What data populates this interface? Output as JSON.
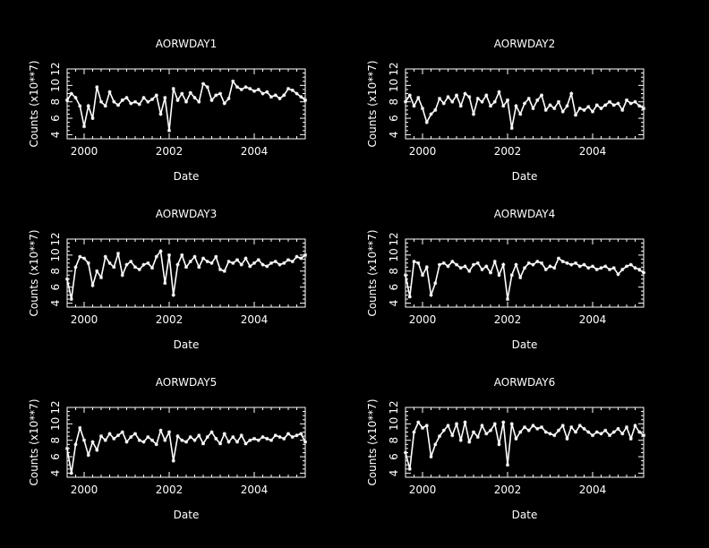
{
  "style": {
    "background": "#000000",
    "foreground": "#ffffff"
  },
  "chart_data": [
    {
      "type": "line",
      "title": "AORWDAY1",
      "xlabel": "Date",
      "ylabel": "Counts (x10**7)",
      "xlim": [
        1999.6,
        2005.2
      ],
      "ylim": [
        3.5,
        12
      ],
      "xticks": [
        "2000",
        "2002",
        "2004"
      ],
      "yticks": [
        "4",
        "6",
        "8",
        "10",
        "12"
      ],
      "series": [
        {
          "x": [
            1999.6,
            1999.7,
            1999.8,
            1999.9,
            2000.0,
            2000.1,
            2000.2,
            2000.3,
            2000.4,
            2000.5,
            2000.6,
            2000.7,
            2000.8,
            2000.9,
            2001.0,
            2001.1,
            2001.2,
            2001.3,
            2001.4,
            2001.5,
            2001.6,
            2001.7,
            2001.8,
            2001.9,
            2002.0,
            2002.1,
            2002.2,
            2002.3,
            2002.4,
            2002.5,
            2002.6,
            2002.7,
            2002.8,
            2002.9,
            2003.0,
            2003.1,
            2003.2,
            2003.3,
            2003.4,
            2003.5,
            2003.6,
            2003.7,
            2003.8,
            2003.9,
            2004.0,
            2004.1,
            2004.2,
            2004.3,
            2004.4,
            2004.5,
            2004.6,
            2004.7,
            2004.8,
            2004.9,
            2005.0,
            2005.1,
            2005.2
          ],
          "y": [
            8.2,
            9.0,
            8.5,
            7.5,
            5.0,
            7.5,
            6.0,
            9.8,
            8.0,
            7.5,
            9.2,
            8.0,
            7.6,
            8.2,
            8.5,
            7.8,
            8.0,
            7.7,
            8.5,
            8.0,
            8.3,
            8.8,
            6.5,
            8.5,
            4.5,
            9.6,
            8.2,
            9.0,
            8.0,
            9.1,
            8.5,
            8.0,
            10.2,
            9.8,
            8.2,
            8.8,
            9.0,
            7.8,
            8.4,
            10.5,
            9.8,
            9.5,
            9.8,
            9.6,
            9.3,
            9.5,
            9.0,
            9.2,
            8.6,
            8.8,
            8.4,
            8.8,
            9.6,
            9.4,
            9.0,
            8.6,
            8.2
          ]
        }
      ]
    },
    {
      "type": "line",
      "title": "AORWDAY2",
      "xlabel": "Date",
      "ylabel": "Counts (x10**7)",
      "xlim": [
        1999.6,
        2005.2
      ],
      "ylim": [
        3.5,
        12
      ],
      "xticks": [
        "2000",
        "2002",
        "2004"
      ],
      "yticks": [
        "4",
        "6",
        "8",
        "10",
        "12"
      ],
      "series": [
        {
          "x": [
            1999.6,
            1999.7,
            1999.8,
            1999.9,
            2000.0,
            2000.1,
            2000.2,
            2000.3,
            2000.4,
            2000.5,
            2000.6,
            2000.7,
            2000.8,
            2000.9,
            2001.0,
            2001.1,
            2001.2,
            2001.3,
            2001.4,
            2001.5,
            2001.6,
            2001.7,
            2001.8,
            2001.9,
            2002.0,
            2002.1,
            2002.2,
            2002.3,
            2002.4,
            2002.5,
            2002.6,
            2002.7,
            2002.8,
            2002.9,
            2003.0,
            2003.1,
            2003.2,
            2003.3,
            2003.4,
            2003.5,
            2003.6,
            2003.7,
            2003.8,
            2003.9,
            2004.0,
            2004.1,
            2004.2,
            2004.3,
            2004.4,
            2004.5,
            2004.6,
            2004.7,
            2004.8,
            2004.9,
            2005.0,
            2005.1,
            2005.2
          ],
          "y": [
            8.0,
            8.8,
            7.5,
            8.5,
            7.2,
            5.5,
            6.5,
            7.0,
            8.4,
            7.8,
            8.6,
            8.0,
            8.8,
            7.5,
            9.0,
            8.6,
            6.5,
            8.4,
            8.0,
            8.8,
            7.5,
            8.0,
            9.2,
            7.5,
            8.2,
            4.8,
            7.5,
            6.5,
            7.8,
            8.4,
            7.2,
            8.2,
            8.8,
            7.0,
            7.6,
            7.2,
            8.0,
            6.8,
            7.5,
            9.0,
            6.4,
            7.2,
            7.0,
            7.4,
            6.8,
            7.6,
            7.2,
            7.6,
            8.0,
            7.6,
            7.8,
            7.0,
            8.2,
            7.8,
            8.0,
            7.5,
            7.2
          ]
        }
      ]
    },
    {
      "type": "line",
      "title": "AORWDAY3",
      "xlabel": "Date",
      "ylabel": "Counts (x10**7)",
      "xlim": [
        1999.6,
        2005.2
      ],
      "ylim": [
        3.5,
        12
      ],
      "xticks": [
        "2000",
        "2002",
        "2004"
      ],
      "yticks": [
        "4",
        "6",
        "8",
        "10",
        "12"
      ],
      "series": [
        {
          "x": [
            1999.6,
            1999.7,
            1999.8,
            1999.9,
            2000.0,
            2000.1,
            2000.2,
            2000.3,
            2000.4,
            2000.5,
            2000.6,
            2000.7,
            2000.8,
            2000.9,
            2001.0,
            2001.1,
            2001.2,
            2001.3,
            2001.4,
            2001.5,
            2001.6,
            2001.7,
            2001.8,
            2001.9,
            2002.0,
            2002.1,
            2002.2,
            2002.3,
            2002.4,
            2002.5,
            2002.6,
            2002.7,
            2002.8,
            2002.9,
            2003.0,
            2003.1,
            2003.2,
            2003.3,
            2003.4,
            2003.5,
            2003.6,
            2003.7,
            2003.8,
            2003.9,
            2004.0,
            2004.1,
            2004.2,
            2004.3,
            2004.4,
            2004.5,
            2004.6,
            2004.7,
            2004.8,
            2004.9,
            2005.0,
            2005.1,
            2005.2
          ],
          "y": [
            7.0,
            4.5,
            8.5,
            9.8,
            9.6,
            9.0,
            6.2,
            8.0,
            7.2,
            9.8,
            9.0,
            8.5,
            10.2,
            7.5,
            8.8,
            9.2,
            8.5,
            8.2,
            8.8,
            9.0,
            8.4,
            9.8,
            10.5,
            6.5,
            10.0,
            5.0,
            8.8,
            10.0,
            8.5,
            9.2,
            9.8,
            8.5,
            9.6,
            9.2,
            9.0,
            9.8,
            8.2,
            8.0,
            9.2,
            9.0,
            9.4,
            8.8,
            9.6,
            8.6,
            9.0,
            9.4,
            8.8,
            8.6,
            9.0,
            9.2,
            8.8,
            9.0,
            9.4,
            9.2,
            9.8,
            9.6,
            10.0
          ]
        }
      ]
    },
    {
      "type": "line",
      "title": "AORWDAY4",
      "xlabel": "Date",
      "ylabel": "Counts (x10**7)",
      "xlim": [
        1999.6,
        2005.2
      ],
      "ylim": [
        3.5,
        12
      ],
      "xticks": [
        "2000",
        "2002",
        "2004"
      ],
      "yticks": [
        "4",
        "6",
        "8",
        "10",
        "12"
      ],
      "series": [
        {
          "x": [
            1999.6,
            1999.7,
            1999.8,
            1999.9,
            2000.0,
            2000.1,
            2000.2,
            2000.3,
            2000.4,
            2000.5,
            2000.6,
            2000.7,
            2000.8,
            2000.9,
            2001.0,
            2001.1,
            2001.2,
            2001.3,
            2001.4,
            2001.5,
            2001.6,
            2001.7,
            2001.8,
            2001.9,
            2002.0,
            2002.1,
            2002.2,
            2002.3,
            2002.4,
            2002.5,
            2002.6,
            2002.7,
            2002.8,
            2002.9,
            2003.0,
            2003.1,
            2003.2,
            2003.3,
            2003.4,
            2003.5,
            2003.6,
            2003.7,
            2003.8,
            2003.9,
            2004.0,
            2004.1,
            2004.2,
            2004.3,
            2004.4,
            2004.5,
            2004.6,
            2004.7,
            2004.8,
            2004.9,
            2005.0,
            2005.1,
            2005.2
          ],
          "y": [
            7.5,
            4.8,
            9.2,
            9.0,
            7.5,
            8.5,
            5.0,
            6.5,
            8.8,
            9.0,
            8.6,
            9.2,
            8.8,
            8.4,
            8.6,
            8.0,
            8.8,
            9.0,
            8.2,
            8.6,
            7.8,
            9.2,
            7.5,
            8.8,
            4.5,
            7.5,
            8.8,
            7.2,
            8.4,
            9.0,
            8.8,
            9.2,
            9.0,
            8.2,
            8.6,
            8.4,
            9.6,
            9.2,
            9.0,
            8.8,
            9.0,
            8.6,
            8.8,
            8.4,
            8.6,
            8.2,
            8.4,
            8.6,
            8.2,
            8.4,
            7.6,
            8.2,
            8.6,
            8.8,
            8.4,
            8.2,
            7.8
          ]
        }
      ]
    },
    {
      "type": "line",
      "title": "AORWDAY5",
      "xlabel": "Date",
      "ylabel": "Counts (x10**7)",
      "xlim": [
        1999.6,
        2005.2
      ],
      "ylim": [
        3.5,
        12
      ],
      "xticks": [
        "2000",
        "2002",
        "2004"
      ],
      "yticks": [
        "4",
        "6",
        "8",
        "10",
        "12"
      ],
      "series": [
        {
          "x": [
            1999.6,
            1999.7,
            1999.8,
            1999.9,
            2000.0,
            2000.1,
            2000.2,
            2000.3,
            2000.4,
            2000.5,
            2000.6,
            2000.7,
            2000.8,
            2000.9,
            2001.0,
            2001.1,
            2001.2,
            2001.3,
            2001.4,
            2001.5,
            2001.6,
            2001.7,
            2001.8,
            2001.9,
            2002.0,
            2002.1,
            2002.2,
            2002.3,
            2002.4,
            2002.5,
            2002.6,
            2002.7,
            2002.8,
            2002.9,
            2003.0,
            2003.1,
            2003.2,
            2003.3,
            2003.4,
            2003.5,
            2003.6,
            2003.7,
            2003.8,
            2003.9,
            2004.0,
            2004.1,
            2004.2,
            2004.3,
            2004.4,
            2004.5,
            2004.6,
            2004.7,
            2004.8,
            2004.9,
            2005.0,
            2005.1,
            2005.2
          ],
          "y": [
            7.0,
            4.0,
            7.5,
            9.5,
            8.0,
            6.2,
            7.8,
            6.8,
            8.5,
            8.0,
            8.8,
            8.2,
            8.6,
            9.0,
            7.8,
            8.4,
            8.8,
            8.0,
            7.8,
            8.4,
            8.0,
            7.5,
            9.2,
            8.0,
            9.0,
            5.5,
            8.5,
            8.0,
            7.8,
            8.4,
            8.0,
            8.6,
            7.6,
            8.4,
            9.0,
            8.2,
            7.6,
            8.8,
            7.8,
            8.4,
            7.8,
            8.6,
            7.6,
            8.0,
            8.2,
            8.0,
            8.4,
            8.2,
            8.0,
            8.6,
            8.4,
            8.2,
            8.8,
            8.4,
            8.6,
            8.8,
            7.8
          ]
        }
      ]
    },
    {
      "type": "line",
      "title": "AORWDAY6",
      "xlabel": "Date",
      "ylabel": "Counts (x10**7)",
      "xlim": [
        1999.6,
        2005.2
      ],
      "ylim": [
        3.5,
        12
      ],
      "xticks": [
        "2000",
        "2002",
        "2004"
      ],
      "yticks": [
        "4",
        "6",
        "8",
        "10",
        "12"
      ],
      "series": [
        {
          "x": [
            1999.6,
            1999.7,
            1999.8,
            1999.9,
            2000.0,
            2000.1,
            2000.2,
            2000.3,
            2000.4,
            2000.5,
            2000.6,
            2000.7,
            2000.8,
            2000.9,
            2001.0,
            2001.1,
            2001.2,
            2001.3,
            2001.4,
            2001.5,
            2001.6,
            2001.7,
            2001.8,
            2001.9,
            2002.0,
            2002.1,
            2002.2,
            2002.3,
            2002.4,
            2002.5,
            2002.6,
            2002.7,
            2002.8,
            2002.9,
            2003.0,
            2003.1,
            2003.2,
            2003.3,
            2003.4,
            2003.5,
            2003.6,
            2003.7,
            2003.8,
            2003.9,
            2004.0,
            2004.1,
            2004.2,
            2004.3,
            2004.4,
            2004.5,
            2004.6,
            2004.7,
            2004.8,
            2004.9,
            2005.0,
            2005.1,
            2005.2
          ],
          "y": [
            6.5,
            4.5,
            9.0,
            10.2,
            9.5,
            9.8,
            6.0,
            7.5,
            8.5,
            9.2,
            9.8,
            8.6,
            10.0,
            8.0,
            10.2,
            7.8,
            9.0,
            8.4,
            9.8,
            8.8,
            9.2,
            10.0,
            7.5,
            10.2,
            5.0,
            10.0,
            8.2,
            9.0,
            9.6,
            9.2,
            9.8,
            9.4,
            9.6,
            9.0,
            8.8,
            8.6,
            9.2,
            9.8,
            8.2,
            9.6,
            9.0,
            9.8,
            9.4,
            9.0,
            8.6,
            9.0,
            8.8,
            9.2,
            8.6,
            9.0,
            9.4,
            8.8,
            9.6,
            8.2,
            9.8,
            9.0,
            8.6
          ]
        }
      ]
    }
  ]
}
